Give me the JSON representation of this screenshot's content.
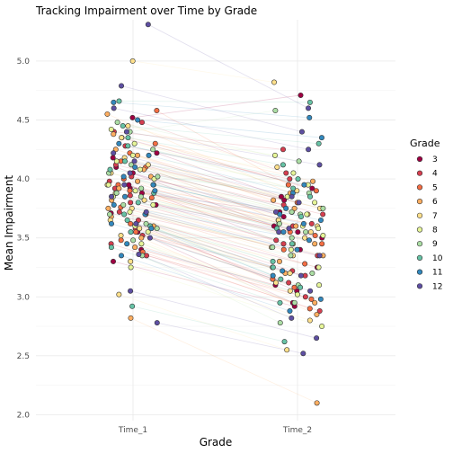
{
  "chart_data": {
    "type": "scatter",
    "title": "Tracking Impairment over Time by Grade",
    "xlabel": "Grade",
    "ylabel": "Mean Impairment",
    "categories": [
      "Time_1",
      "Time_2"
    ],
    "ylim": [
      1.95,
      5.35
    ],
    "yticks": [
      2.0,
      2.5,
      3.0,
      3.5,
      4.0,
      4.5,
      5.0
    ],
    "ytick_labels": [
      "2.0",
      "2.5",
      "3.0",
      "3.5",
      "4.0",
      "4.5",
      "5.0"
    ],
    "grid": true,
    "legend": {
      "title": "Grade",
      "position": "right",
      "labels": [
        "3",
        "4",
        "5",
        "6",
        "7",
        "8",
        "9",
        "10",
        "11",
        "12"
      ]
    },
    "colors": [
      "#9E0142",
      "#D53E4F",
      "#F46D43",
      "#FDAE61",
      "#FEE08B",
      "#E6F598",
      "#ABDDA4",
      "#66C2A5",
      "#3288BD",
      "#5E4FA2"
    ],
    "note_points": "each student has a Time_1 and Time_2 mean impairment joined by a faint line; points colored by grade",
    "series": [
      {
        "name": "3",
        "time_1": [
          4.52,
          4.18,
          3.92,
          3.71,
          3.55,
          4.35,
          3.4,
          4.05,
          3.88,
          3.62,
          4.1,
          3.78,
          3.3,
          4.22,
          3.95
        ],
        "time_2": [
          4.71,
          3.82,
          3.55,
          3.25,
          2.95,
          3.92,
          3.1,
          3.68,
          3.72,
          3.05,
          3.6,
          3.5,
          2.92,
          3.85,
          3.4
        ]
      },
      {
        "name": "4",
        "time_1": [
          4.48,
          4.12,
          3.86,
          3.58,
          3.92,
          4.28,
          3.45,
          3.72,
          4.02,
          3.65,
          3.35,
          4.4,
          3.8,
          3.98,
          3.52
        ],
        "time_2": [
          4.05,
          3.7,
          3.45,
          3.12,
          3.62,
          4.0,
          2.88,
          3.35,
          3.78,
          3.22,
          3.0,
          4.25,
          3.48,
          3.6,
          3.18
        ]
      },
      {
        "name": "5",
        "time_1": [
          4.58,
          4.22,
          3.9,
          3.62,
          3.76,
          4.1,
          3.48,
          3.84,
          4.3,
          3.7,
          3.55,
          4.0,
          3.95,
          3.38,
          4.15
        ],
        "time_2": [
          3.95,
          3.8,
          3.52,
          3.08,
          3.4,
          3.65,
          2.98,
          3.45,
          3.9,
          3.28,
          3.15,
          3.55,
          3.72,
          2.9,
          3.75
        ]
      },
      {
        "name": "6",
        "time_1": [
          4.55,
          4.2,
          3.82,
          2.82,
          3.98,
          4.38,
          3.6,
          3.75,
          4.08,
          3.5,
          3.92,
          4.25,
          3.68,
          3.42,
          4.02
        ],
        "time_2": [
          3.88,
          3.75,
          3.35,
          2.1,
          3.6,
          3.98,
          3.2,
          3.3,
          3.7,
          2.85,
          3.45,
          3.82,
          3.25,
          2.95,
          3.62
        ]
      },
      {
        "name": "7",
        "time_1": [
          5.0,
          4.35,
          3.65,
          3.02,
          4.12,
          3.88,
          3.58,
          4.45,
          3.75,
          3.95,
          3.3,
          4.18,
          3.82,
          3.52,
          4.05
        ],
        "time_2": [
          4.82,
          3.9,
          3.2,
          2.55,
          3.65,
          3.42,
          3.12,
          4.1,
          3.35,
          3.55,
          2.8,
          3.75,
          3.5,
          3.05,
          3.6
        ]
      },
      {
        "name": "8",
        "time_1": [
          4.42,
          4.15,
          3.95,
          3.72,
          3.6,
          4.3,
          3.85,
          3.45,
          4.0,
          3.25,
          3.78,
          4.2,
          3.55,
          3.9,
          4.08
        ],
        "time_2": [
          4.2,
          3.85,
          3.6,
          3.4,
          3.25,
          4.05,
          3.58,
          3.02,
          3.7,
          2.75,
          3.45,
          3.95,
          3.1,
          3.52,
          3.8
        ]
      },
      {
        "name": "9",
        "time_1": [
          4.4,
          4.02,
          3.85,
          3.62,
          3.48,
          4.25,
          3.7,
          4.12,
          3.92,
          3.35,
          4.48,
          3.78,
          3.58,
          4.05,
          3.88
        ],
        "time_2": [
          4.58,
          3.7,
          3.5,
          3.2,
          2.95,
          3.88,
          3.35,
          3.75,
          3.62,
          2.78,
          4.15,
          3.42,
          3.1,
          3.72,
          3.55
        ]
      },
      {
        "name": "10",
        "time_1": [
          4.66,
          4.45,
          3.8,
          3.6,
          4.15,
          3.95,
          3.42,
          2.92,
          4.28,
          3.7,
          4.08,
          3.55,
          3.88,
          4.35,
          3.65
        ],
        "time_2": [
          4.65,
          4.3,
          3.45,
          3.15,
          3.92,
          3.68,
          2.95,
          2.62,
          4.0,
          3.3,
          3.85,
          3.08,
          3.58,
          4.12,
          3.25
        ]
      },
      {
        "name": "11",
        "time_1": [
          4.65,
          3.58,
          4.1,
          3.85,
          3.7,
          4.3,
          3.95,
          3.45,
          4.2,
          3.62,
          3.78,
          4.5,
          3.35,
          4.02,
          3.9
        ],
        "time_2": [
          4.52,
          3.18,
          3.75,
          3.55,
          3.4,
          3.95,
          3.65,
          2.98,
          3.88,
          3.22,
          3.48,
          4.35,
          2.88,
          3.7,
          3.62
        ]
      },
      {
        "name": "12",
        "time_1": [
          5.31,
          4.79,
          4.6,
          2.78,
          3.95,
          3.62,
          4.22,
          3.5,
          4.15,
          3.36,
          3.85,
          4.4,
          3.72,
          3.05,
          4.05
        ],
        "time_2": [
          4.6,
          4.4,
          4.25,
          2.52,
          3.58,
          3.18,
          3.85,
          3.05,
          3.8,
          2.82,
          3.55,
          4.12,
          3.35,
          2.65,
          3.72
        ]
      }
    ]
  }
}
